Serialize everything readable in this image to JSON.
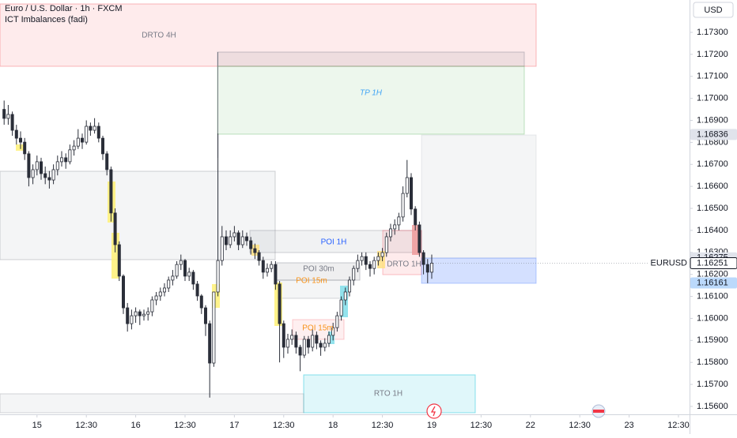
{
  "header": {
    "symbol": "Euro / U.S. Dollar · 1h · FXCM",
    "indicator": "ICT Imbalances (fadi)",
    "currency": "USD"
  },
  "chart_data": {
    "type": "candlestick",
    "x": [
      -8,
      -7,
      -6,
      -5,
      -4,
      -3,
      -2,
      -1,
      0,
      1,
      2,
      3,
      4,
      5,
      6,
      7,
      8,
      9,
      10,
      11,
      12,
      13,
      14,
      15,
      16,
      17,
      18,
      19,
      20,
      21,
      22,
      23,
      24,
      25,
      26,
      27,
      28,
      29,
      30,
      31,
      32,
      33,
      34,
      35,
      36,
      37,
      38,
      39,
      40,
      41,
      42,
      43,
      44,
      45,
      46,
      47,
      48,
      49,
      50,
      51,
      52,
      53,
      54,
      55,
      56,
      57,
      58,
      59,
      60,
      61,
      62,
      63,
      64,
      65,
      66,
      67,
      68,
      69,
      70,
      71,
      72,
      73,
      74,
      75,
      76,
      77,
      78,
      79,
      80,
      81,
      82,
      83,
      84,
      85,
      86,
      87,
      88,
      89,
      90,
      91,
      92,
      93,
      94,
      95,
      96
    ],
    "open": [
      1.1695,
      1.16909,
      1.16927,
      1.16855,
      1.16819,
      1.16801,
      1.16748,
      1.1664,
      1.16676,
      1.16712,
      1.16658,
      1.1664,
      1.16629,
      1.16676,
      1.16712,
      1.1673,
      1.16712,
      1.16766,
      1.16783,
      1.16819,
      1.16801,
      1.16873,
      1.16855,
      1.16873,
      1.16819,
      1.16748,
      1.16676,
      1.16479,
      1.16335,
      1.16192,
      1.16048,
      1.15976,
      1.16012,
      1.1603,
      1.16012,
      1.16019,
      1.1603,
      1.16084,
      1.16102,
      1.1612,
      1.16138,
      1.16174,
      1.16192,
      1.16245,
      1.16263,
      1.16192,
      1.1621,
      1.16156,
      1.16102,
      1.16048,
      1.15976,
      1.15797,
      1.1612,
      1.16263,
      1.16371,
      1.16335,
      1.16371,
      1.16389,
      1.16335,
      1.16371,
      1.16353,
      1.16317,
      1.16299,
      1.16263,
      1.1621,
      1.16227,
      1.16245,
      1.16156,
      1.15976,
      1.15869,
      1.15905,
      1.15923,
      1.15869,
      1.15833,
      1.15905,
      1.15869,
      1.15923,
      1.15887,
      1.15869,
      1.15887,
      1.15923,
      1.15958,
      1.16012,
      1.16084,
      1.1612,
      1.16174,
      1.16227,
      1.16263,
      1.16281,
      1.16245,
      1.16227,
      1.16263,
      1.16281,
      1.16299,
      1.16371,
      1.16407,
      1.16425,
      1.16461,
      1.16568,
      1.1664,
      1.16497,
      1.16425,
      1.16299,
      1.16245,
      1.1621
    ],
    "high": [
      1.1699,
      1.1697,
      1.1694,
      1.1688,
      1.1685,
      1.1682,
      1.1676,
      1.167,
      1.1674,
      1.1673,
      1.1669,
      1.1667,
      1.167,
      1.1674,
      1.1676,
      1.1675,
      1.1679,
      1.1681,
      1.1686,
      1.1684,
      1.169,
      1.1689,
      1.1691,
      1.1689,
      1.1683,
      1.1676,
      1.1669,
      1.165,
      1.1635,
      1.162,
      1.1607,
      1.1604,
      1.1605,
      1.1604,
      1.1604,
      1.1605,
      1.161,
      1.1612,
      1.1614,
      1.1616,
      1.1619,
      1.1622,
      1.1626,
      1.1629,
      1.1627,
      1.1623,
      1.1622,
      1.1617,
      1.1611,
      1.1606,
      1.1599,
      1.1612,
      1.1684,
      1.1642,
      1.164,
      1.164,
      1.1642,
      1.164,
      1.164,
      1.1639,
      1.1637,
      1.1634,
      1.1631,
      1.1628,
      1.1625,
      1.1626,
      1.1626,
      1.1617,
      1.1599,
      1.1593,
      1.1595,
      1.1594,
      1.1588,
      1.1592,
      1.1592,
      1.1595,
      1.1594,
      1.159,
      1.1591,
      1.1594,
      1.1598,
      1.1603,
      1.161,
      1.1614,
      1.1619,
      1.1624,
      1.1629,
      1.163,
      1.163,
      1.1626,
      1.1628,
      1.163,
      1.1632,
      1.1639,
      1.1643,
      1.1645,
      1.1648,
      1.166,
      1.1672,
      1.1666,
      1.1651,
      1.1644,
      1.1631,
      1.1627,
      1.1629
    ],
    "low": [
      1.1688,
      1.1688,
      1.1683,
      1.1679,
      1.1677,
      1.1672,
      1.166,
      1.1661,
      1.1665,
      1.1663,
      1.1661,
      1.1659,
      1.1661,
      1.1665,
      1.1669,
      1.1668,
      1.167,
      1.1674,
      1.1677,
      1.1677,
      1.1679,
      1.1683,
      1.1684,
      1.168,
      1.1672,
      1.1665,
      1.1644,
      1.163,
      1.1617,
      1.1602,
      1.1594,
      1.1595,
      1.1598,
      1.1597,
      1.1599,
      1.1599,
      1.1601,
      1.1606,
      1.1608,
      1.161,
      1.1612,
      1.1615,
      1.1618,
      1.1622,
      1.1617,
      1.1617,
      1.1613,
      1.1608,
      1.1602,
      1.1592,
      1.1564,
      1.1578,
      1.161,
      1.1624,
      1.1631,
      1.1632,
      1.1635,
      1.1631,
      1.1632,
      1.1633,
      1.1629,
      1.1627,
      1.1624,
      1.1618,
      1.1619,
      1.1621,
      1.1613,
      1.158,
      1.1582,
      1.1584,
      1.1588,
      1.1584,
      1.1576,
      1.1582,
      1.1584,
      1.1585,
      1.1586,
      1.1583,
      1.1585,
      1.1587,
      1.159,
      1.1594,
      1.1599,
      1.1606,
      1.161,
      1.1615,
      1.1621,
      1.1624,
      1.1622,
      1.1619,
      1.162,
      1.1624,
      1.1626,
      1.1628,
      1.1635,
      1.1638,
      1.164,
      1.1644,
      1.1655,
      1.1647,
      1.164,
      1.1628,
      1.162,
      1.1616,
      1.1618
    ],
    "close": [
      1.16909,
      1.16927,
      1.16855,
      1.16819,
      1.16801,
      1.16748,
      1.1664,
      1.16676,
      1.16712,
      1.16658,
      1.1664,
      1.16629,
      1.16676,
      1.16712,
      1.1673,
      1.16712,
      1.16766,
      1.16783,
      1.16819,
      1.16801,
      1.16873,
      1.16855,
      1.16873,
      1.16819,
      1.16748,
      1.16676,
      1.16479,
      1.16335,
      1.16192,
      1.16048,
      1.15976,
      1.16012,
      1.1603,
      1.16012,
      1.16019,
      1.1603,
      1.16084,
      1.16102,
      1.1612,
      1.16138,
      1.16174,
      1.16192,
      1.16245,
      1.16263,
      1.16192,
      1.1621,
      1.16156,
      1.16102,
      1.16048,
      1.15976,
      1.15797,
      1.1612,
      1.16263,
      1.16371,
      1.16335,
      1.16371,
      1.16389,
      1.16335,
      1.16371,
      1.16353,
      1.16317,
      1.16299,
      1.16263,
      1.1621,
      1.16227,
      1.16245,
      1.16156,
      1.15976,
      1.15869,
      1.15905,
      1.15923,
      1.15869,
      1.15833,
      1.15905,
      1.15869,
      1.15923,
      1.15887,
      1.15869,
      1.15887,
      1.15923,
      1.15958,
      1.16012,
      1.16084,
      1.1612,
      1.16174,
      1.16227,
      1.16263,
      1.16281,
      1.16245,
      1.16227,
      1.16263,
      1.16281,
      1.16299,
      1.16371,
      1.16407,
      1.16425,
      1.16461,
      1.16568,
      1.1664,
      1.16497,
      1.16425,
      1.16299,
      1.16245,
      1.1621,
      1.16251
    ],
    "color_up": "#ffffff",
    "color_down": "#2a2e39",
    "wick_color": "#2a2e39",
    "xlim": [
      -9,
      158.7
    ],
    "ylim": [
      1.15564,
      1.17447
    ],
    "xticks": [
      {
        "value": 0,
        "label": "15"
      },
      {
        "value": 12,
        "label": "12:30"
      },
      {
        "value": 24,
        "label": "16"
      },
      {
        "value": 36,
        "label": "12:30"
      },
      {
        "value": 48,
        "label": "17"
      },
      {
        "value": 60,
        "label": "12:30"
      },
      {
        "value": 72,
        "label": "18"
      },
      {
        "value": 84,
        "label": "12:30"
      },
      {
        "value": 96,
        "label": "19"
      },
      {
        "value": 108,
        "label": "12:30"
      },
      {
        "value": 120,
        "label": "22"
      },
      {
        "value": 132,
        "label": "12:30"
      },
      {
        "value": 144,
        "label": "23"
      },
      {
        "value": 156,
        "label": "12:30"
      }
    ],
    "yticks": [
      {
        "value": 1.173,
        "label": "1.17300"
      },
      {
        "value": 1.172,
        "label": "1.17200"
      },
      {
        "value": 1.171,
        "label": "1.17100"
      },
      {
        "value": 1.17,
        "label": "1.17000"
      },
      {
        "value": 1.169,
        "label": "1.16900"
      },
      {
        "value": 1.168,
        "label": "1.16800"
      },
      {
        "value": 1.167,
        "label": "1.16700"
      },
      {
        "value": 1.166,
        "label": "1.16600"
      },
      {
        "value": 1.165,
        "label": "1.16500"
      },
      {
        "value": 1.164,
        "label": "1.16400"
      },
      {
        "value": 1.163,
        "label": "1.16300"
      },
      {
        "value": 1.162,
        "label": "1.16200"
      },
      {
        "value": 1.161,
        "label": "1.16100"
      },
      {
        "value": 1.16,
        "label": "1.16000"
      },
      {
        "value": 1.159,
        "label": "1.15900"
      },
      {
        "value": 1.158,
        "label": "1.15800"
      },
      {
        "value": 1.157,
        "label": "1.15700"
      },
      {
        "value": 1.156,
        "label": "1.15600"
      }
    ],
    "price_markers": [
      1.16836,
      1.16275,
      1.16251,
      1.16161
    ],
    "symbol_label": "EURUSD",
    "drawings": [
      "DRTO 4H",
      "TP 1H",
      "POI 1H",
      "DRTO 1H",
      "POI 30m",
      "POI 15m",
      "POI 15m",
      "RTO 1H"
    ]
  }
}
